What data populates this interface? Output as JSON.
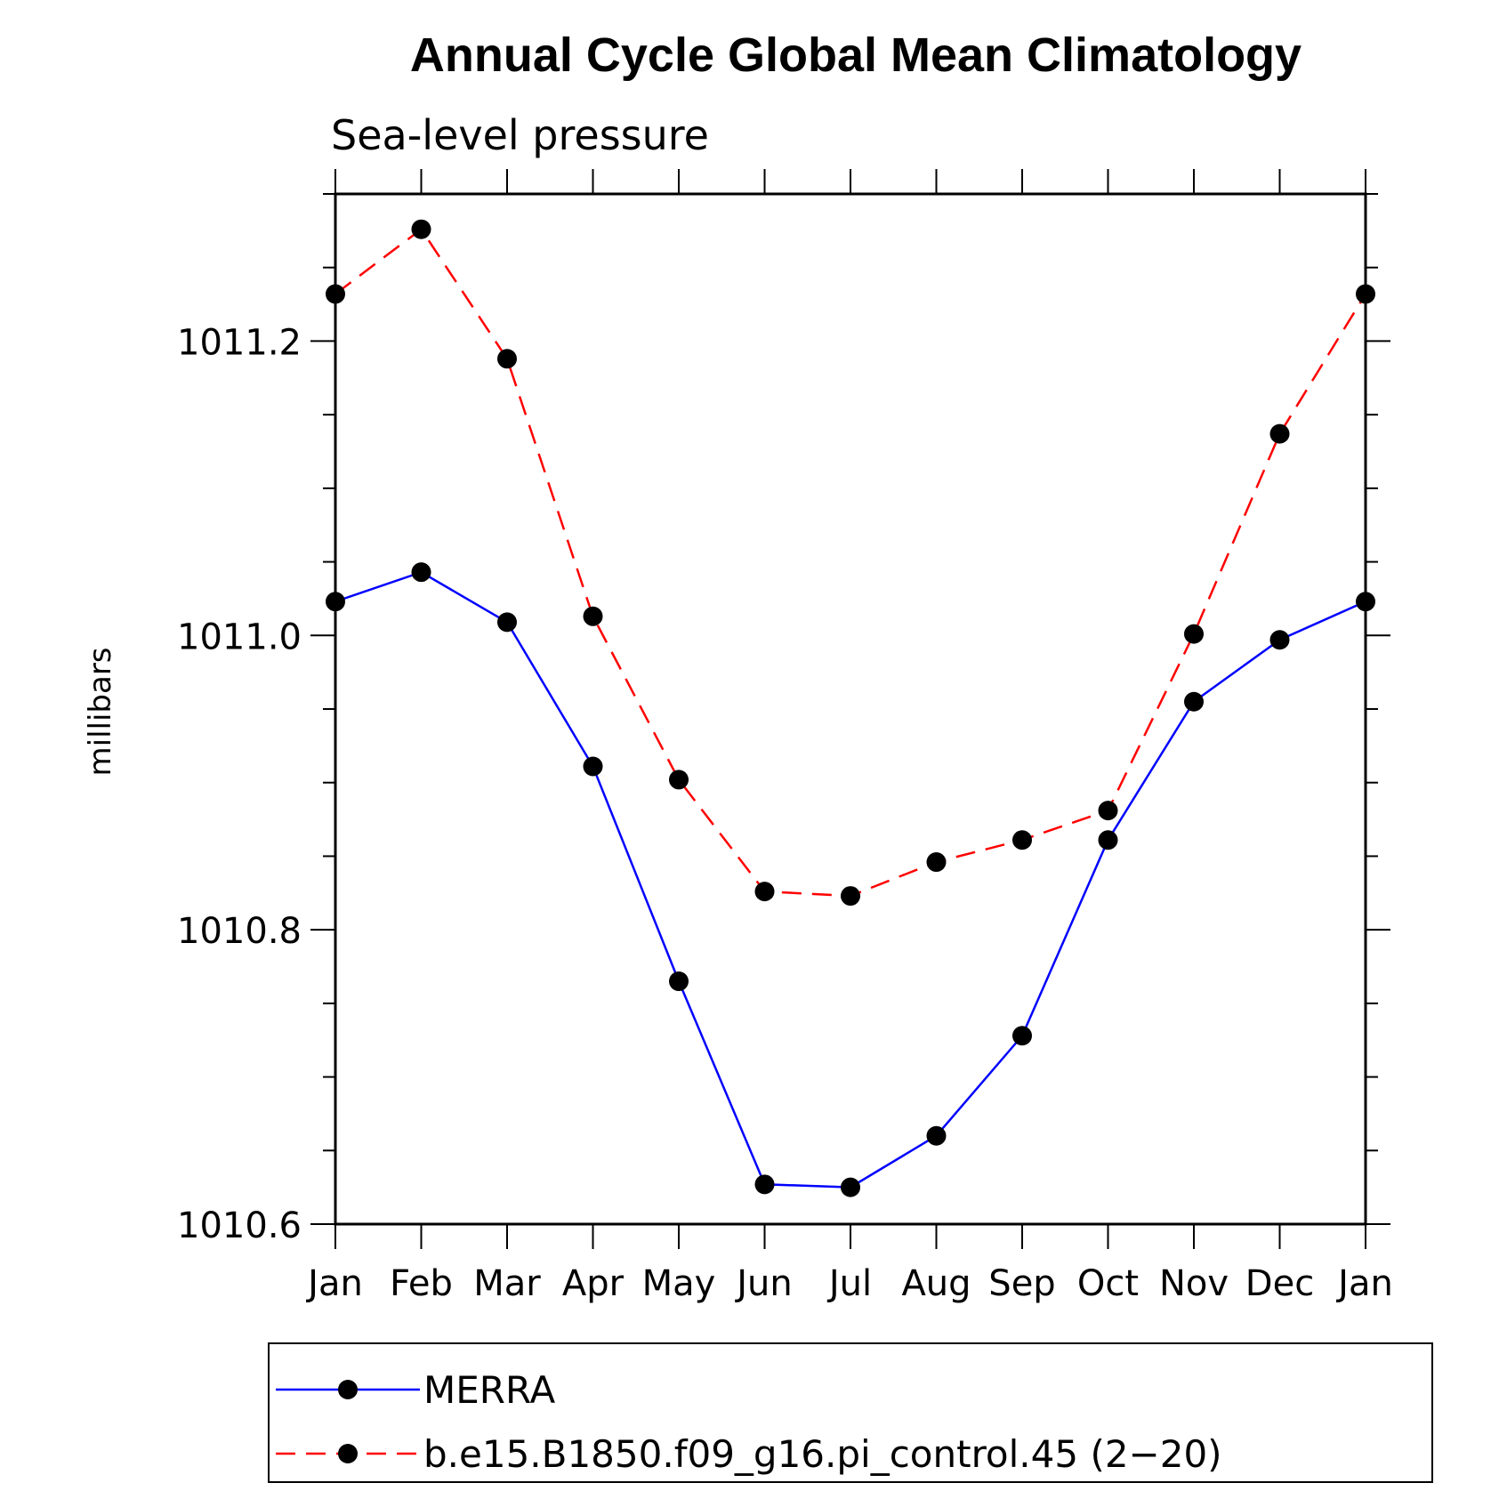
{
  "chart_data": {
    "type": "line",
    "title": "Annual Cycle Global Mean Climatology",
    "subtitle": "Sea-level pressure",
    "ylabel": "millibars",
    "xlabel": "",
    "categories": [
      "Jan",
      "Feb",
      "Mar",
      "Apr",
      "May",
      "Jun",
      "Jul",
      "Aug",
      "Sep",
      "Oct",
      "Nov",
      "Dec",
      "Jan"
    ],
    "ylim": [
      1010.6,
      1011.3
    ],
    "yticks": [
      "1010.6",
      "1010.8",
      "1011.0",
      "1011.2"
    ],
    "grid": false,
    "legend_position": "bottom",
    "series": [
      {
        "name": "MERRA",
        "color": "#0000ff",
        "dash": "solid",
        "marker": "filled-circle",
        "values": [
          1011.023,
          1011.043,
          1011.009,
          1010.911,
          1010.765,
          1010.627,
          1010.625,
          1010.66,
          1010.728,
          1010.861,
          1010.955,
          1010.997,
          1011.023
        ]
      },
      {
        "name": "b.e15.B1850.f09_g16.pi_control.45 (2−20)",
        "color": "#ff0000",
        "dash": "dashed",
        "marker": "filled-circle",
        "values": [
          1011.232,
          1011.276,
          1011.188,
          1011.013,
          1010.902,
          1010.826,
          1010.823,
          1010.846,
          1010.861,
          1010.881,
          1011.001,
          1011.137,
          1011.232
        ]
      }
    ]
  }
}
